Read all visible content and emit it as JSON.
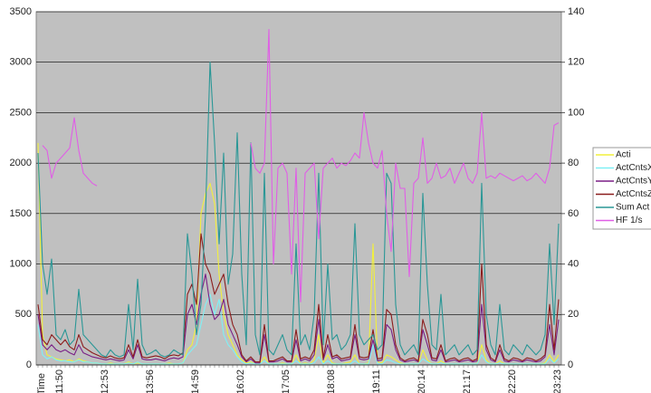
{
  "chart_data": {
    "type": "line",
    "x_label": "Time",
    "categories": [
      null,
      null,
      null,
      null,
      "11:50",
      null,
      null,
      null,
      null,
      null,
      null,
      null,
      null,
      null,
      "12:53",
      null,
      null,
      null,
      null,
      null,
      null,
      null,
      null,
      null,
      "13:56",
      null,
      null,
      null,
      null,
      null,
      null,
      null,
      null,
      null,
      "14:59",
      null,
      null,
      null,
      null,
      null,
      null,
      null,
      null,
      null,
      "16:02",
      null,
      null,
      null,
      null,
      null,
      null,
      null,
      null,
      null,
      "17:05",
      null,
      null,
      null,
      null,
      null,
      null,
      null,
      null,
      null,
      "18:08",
      null,
      null,
      null,
      null,
      null,
      null,
      null,
      null,
      null,
      "19:11",
      null,
      null,
      null,
      null,
      null,
      null,
      null,
      null,
      null,
      "20:14",
      null,
      null,
      null,
      null,
      null,
      null,
      null,
      null,
      null,
      "21:17",
      null,
      null,
      null,
      null,
      null,
      null,
      null,
      null,
      null,
      "22:20",
      null,
      null,
      null,
      null,
      null,
      null,
      null,
      null,
      null,
      "23:23",
      null
    ],
    "ylim": [
      0,
      3500
    ],
    "yticks": [
      0,
      500,
      1000,
      1500,
      2000,
      2500,
      3000,
      3500
    ],
    "y2lim": [
      0,
      140
    ],
    "y2ticks": [
      0,
      20,
      40,
      60,
      80,
      100,
      120,
      140
    ],
    "grid": true,
    "legend": "right",
    "series": [
      {
        "name": "Acti",
        "color": "#f2f03c",
        "values": [
          2200,
          300,
          100,
          80,
          60,
          50,
          40,
          50,
          30,
          60,
          40,
          30,
          20,
          20,
          10,
          10,
          20,
          10,
          10,
          10,
          30,
          10,
          20,
          10,
          10,
          10,
          10,
          10,
          10,
          20,
          10,
          10,
          20,
          150,
          200,
          400,
          1500,
          1700,
          1800,
          1600,
          900,
          500,
          300,
          200,
          100,
          50,
          20,
          30,
          10,
          10,
          80,
          10,
          10,
          10,
          20,
          10,
          10,
          100,
          10,
          20,
          10,
          50,
          300,
          20,
          100,
          20,
          10,
          10,
          20,
          30,
          100,
          10,
          10,
          20,
          1200,
          30,
          20,
          100,
          80,
          50,
          20,
          10,
          10,
          10,
          10,
          150,
          50,
          10,
          10,
          40,
          10,
          10,
          10,
          10,
          10,
          10,
          10,
          10,
          200,
          50,
          10,
          10,
          40,
          10,
          10,
          10,
          10,
          10,
          10,
          10,
          10,
          10,
          20,
          100,
          30,
          100
        ]
      },
      {
        "name": "ActCntsX",
        "color": "#7ff0f5",
        "values": [
          400,
          100,
          60,
          80,
          50,
          40,
          40,
          30,
          30,
          50,
          30,
          30,
          20,
          20,
          10,
          10,
          10,
          10,
          10,
          10,
          20,
          10,
          30,
          10,
          10,
          10,
          10,
          10,
          10,
          10,
          10,
          10,
          20,
          100,
          150,
          200,
          400,
          600,
          700,
          500,
          650,
          300,
          200,
          150,
          80,
          30,
          10,
          20,
          10,
          10,
          40,
          10,
          10,
          10,
          10,
          10,
          10,
          40,
          10,
          10,
          10,
          20,
          80,
          10,
          40,
          10,
          10,
          10,
          10,
          10,
          40,
          10,
          10,
          10,
          200,
          10,
          10,
          50,
          40,
          20,
          10,
          10,
          10,
          10,
          10,
          60,
          30,
          10,
          10,
          20,
          10,
          10,
          10,
          10,
          10,
          10,
          10,
          10,
          100,
          30,
          10,
          10,
          20,
          10,
          10,
          10,
          10,
          10,
          10,
          10,
          10,
          10,
          10,
          60,
          20,
          60
        ]
      },
      {
        "name": "ActCntsY",
        "color": "#7a1f86",
        "values": [
          500,
          200,
          150,
          200,
          150,
          130,
          150,
          120,
          100,
          200,
          120,
          100,
          80,
          70,
          60,
          50,
          60,
          50,
          40,
          50,
          150,
          60,
          200,
          60,
          50,
          50,
          60,
          50,
          40,
          60,
          70,
          60,
          80,
          500,
          600,
          400,
          700,
          900,
          600,
          450,
          500,
          650,
          400,
          300,
          200,
          80,
          30,
          60,
          20,
          20,
          300,
          30,
          30,
          40,
          60,
          30,
          30,
          250,
          40,
          60,
          40,
          100,
          450,
          50,
          200,
          60,
          80,
          40,
          50,
          60,
          300,
          60,
          50,
          60,
          250,
          40,
          50,
          400,
          350,
          150,
          50,
          30,
          40,
          50,
          30,
          350,
          200,
          50,
          40,
          150,
          30,
          40,
          50,
          30,
          40,
          50,
          30,
          40,
          600,
          150,
          50,
          30,
          150,
          40,
          30,
          50,
          40,
          30,
          50,
          40,
          30,
          40,
          80,
          400,
          100,
          450
        ]
      },
      {
        "name": "ActCntsZ",
        "color": "#8b1c1c",
        "values": [
          600,
          250,
          200,
          300,
          250,
          200,
          250,
          180,
          150,
          300,
          180,
          150,
          120,
          100,
          80,
          70,
          90,
          70,
          60,
          70,
          200,
          80,
          250,
          80,
          70,
          80,
          90,
          80,
          60,
          90,
          100,
          90,
          120,
          700,
          800,
          600,
          1300,
          1000,
          900,
          700,
          800,
          900,
          600,
          400,
          300,
          100,
          40,
          80,
          30,
          30,
          400,
          40,
          40,
          60,
          80,
          40,
          40,
          350,
          60,
          80,
          60,
          150,
          600,
          70,
          300,
          80,
          100,
          60,
          70,
          80,
          400,
          80,
          70,
          80,
          350,
          60,
          70,
          550,
          500,
          200,
          70,
          40,
          60,
          70,
          40,
          450,
          300,
          70,
          60,
          200,
          40,
          60,
          70,
          40,
          60,
          70,
          40,
          60,
          1000,
          200,
          70,
          40,
          200,
          60,
          40,
          70,
          60,
          40,
          70,
          60,
          40,
          60,
          100,
          600,
          150,
          650
        ]
      },
      {
        "name": "Sum Act",
        "color": "#2a9796",
        "values": [
          2100,
          1000,
          700,
          1050,
          300,
          250,
          350,
          200,
          250,
          750,
          300,
          250,
          200,
          150,
          100,
          80,
          150,
          100,
          80,
          100,
          600,
          150,
          850,
          200,
          100,
          120,
          150,
          100,
          80,
          100,
          150,
          120,
          100,
          1300,
          900,
          300,
          600,
          1500,
          3000,
          2200,
          1200,
          2100,
          800,
          1100,
          2300,
          900,
          200,
          2200,
          300,
          100,
          1900,
          150,
          100,
          200,
          300,
          150,
          100,
          1200,
          200,
          300,
          150,
          500,
          1900,
          200,
          1000,
          250,
          300,
          150,
          200,
          300,
          1400,
          300,
          200,
          250,
          300,
          150,
          200,
          1900,
          1800,
          600,
          200,
          100,
          150,
          200,
          100,
          1700,
          800,
          200,
          150,
          700,
          100,
          150,
          200,
          100,
          150,
          200,
          100,
          150,
          1800,
          500,
          200,
          100,
          600,
          150,
          100,
          200,
          150,
          100,
          200,
          150,
          100,
          150,
          300,
          1200,
          400,
          1400
        ]
      },
      {
        "name": "HF 1/s",
        "color": "#e05ee6",
        "axis": "y2",
        "values": [
          null,
          87,
          85,
          74,
          80,
          82,
          84,
          86,
          98,
          85,
          76,
          74,
          72,
          71,
          null,
          null,
          null,
          null,
          null,
          null,
          null,
          null,
          null,
          null,
          null,
          null,
          null,
          null,
          null,
          null,
          null,
          null,
          null,
          null,
          null,
          null,
          null,
          null,
          null,
          null,
          null,
          null,
          null,
          null,
          null,
          null,
          null,
          88,
          78,
          76,
          80,
          133,
          40,
          78,
          80,
          76,
          36,
          78,
          25,
          76,
          78,
          80,
          50,
          78,
          80,
          82,
          78,
          80,
          79,
          81,
          84,
          82,
          100,
          88,
          80,
          78,
          85,
          60,
          45,
          80,
          70,
          70,
          35,
          72,
          74,
          90,
          72,
          74,
          80,
          74,
          75,
          78,
          72,
          76,
          80,
          74,
          72,
          76,
          100,
          74,
          75,
          74,
          76,
          75,
          74,
          73,
          74,
          75,
          73,
          74,
          76,
          74,
          72,
          78,
          95,
          96
        ]
      }
    ]
  }
}
